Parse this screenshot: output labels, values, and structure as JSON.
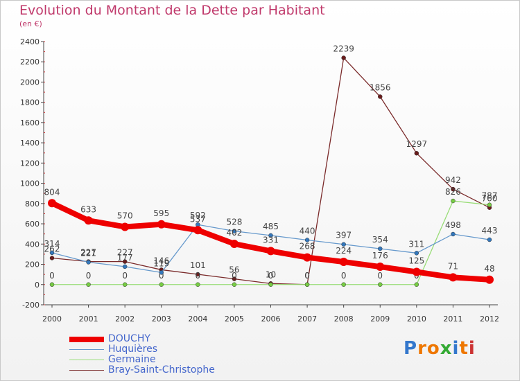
{
  "title": "Evolution du Montant de la Dette par Habitant",
  "subtitle": "(en €)",
  "logo": "Proxiti",
  "chart_data": {
    "type": "line",
    "x": [
      "2000",
      "2001",
      "2002",
      "2003",
      "2004",
      "2005",
      "2006",
      "2007",
      "2008",
      "2009",
      "2010",
      "2011",
      "2012"
    ],
    "ylim": [
      -200,
      2400
    ],
    "yticks": [
      -200,
      0,
      200,
      400,
      600,
      800,
      1000,
      1200,
      1400,
      1600,
      1800,
      2000,
      2200,
      2400
    ],
    "grid": false,
    "legend_position": "bottom-left",
    "series": [
      {
        "name": "Bray-Saint-Christophe",
        "color": "#7a2a2a",
        "point_color": "#6a1c1c",
        "width": 1.3,
        "values": [
          262,
          227,
          227,
          146,
          101,
          56,
          10,
          0,
          2239,
          1856,
          1297,
          942,
          760
        ],
        "labels": [
          "262",
          "227",
          "227",
          "146",
          "101",
          "56",
          "10",
          "0",
          "2239",
          "1856",
          "1297",
          "942",
          "760"
        ]
      },
      {
        "name": "Germaine",
        "color": "#99dd77",
        "point_color": "#77cc44",
        "width": 1.3,
        "values": [
          0,
          0,
          0,
          0,
          0,
          0,
          0,
          0,
          0,
          0,
          0,
          826,
          787
        ],
        "labels": [
          "0",
          "0",
          "0",
          "0",
          "0",
          "0",
          "0",
          "0",
          "0",
          "0",
          "0",
          "826",
          "787"
        ]
      },
      {
        "name": "Huquières",
        "color": "#6699cc",
        "point_color": "#3377bb",
        "width": 1.3,
        "values": [
          314,
          221,
          177,
          119,
          592,
          528,
          485,
          440,
          397,
          354,
          311,
          498,
          443
        ],
        "labels": [
          "314",
          "221",
          "177",
          "119",
          "592",
          "528",
          "485",
          "440",
          "397",
          "354",
          "311",
          "498",
          "443"
        ]
      },
      {
        "name": "DOUCHY",
        "color": "#ee0000",
        "point_color": "#ee0000",
        "width": 8,
        "values": [
          804,
          633,
          570,
          595,
          537,
          402,
          331,
          268,
          224,
          176,
          125,
          71,
          48
        ],
        "labels": [
          "804",
          "633",
          "570",
          "595",
          "537",
          "402",
          "331",
          "268",
          "224",
          "176",
          "125",
          "71",
          "48"
        ]
      }
    ]
  },
  "legend": [
    {
      "name": "DOUCHY",
      "color": "#ee0000",
      "width": 8
    },
    {
      "name": "Huquières",
      "color": "#6699cc",
      "width": 1.5
    },
    {
      "name": "Germaine",
      "color": "#99dd77",
      "width": 1.5
    },
    {
      "name": "Bray-Saint-Christophe",
      "color": "#7a2a2a",
      "width": 1.5
    }
  ]
}
